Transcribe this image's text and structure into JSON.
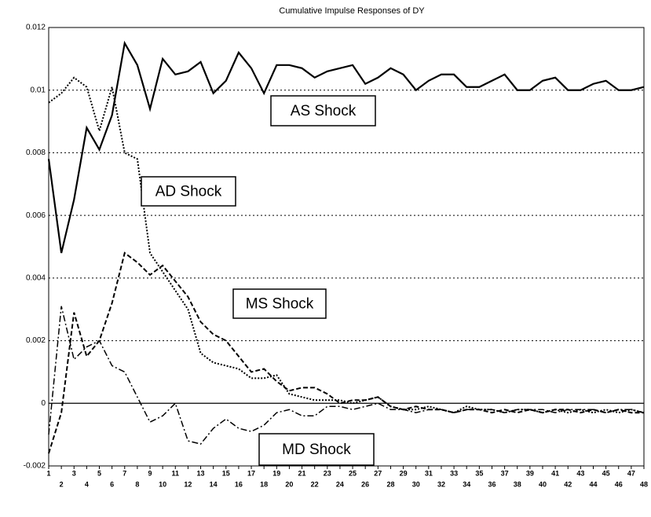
{
  "chart_data": {
    "type": "line",
    "title": "Cumulative Impulse Responses of DY",
    "x": [
      1,
      2,
      3,
      4,
      5,
      6,
      7,
      8,
      9,
      10,
      11,
      12,
      13,
      14,
      15,
      16,
      17,
      18,
      19,
      20,
      21,
      22,
      23,
      24,
      25,
      26,
      27,
      28,
      29,
      30,
      31,
      32,
      33,
      34,
      35,
      36,
      37,
      38,
      39,
      40,
      41,
      42,
      43,
      44,
      45,
      46,
      47,
      48
    ],
    "xlim": [
      1,
      48
    ],
    "ylim": [
      -0.002,
      0.012
    ],
    "yticks": [
      -0.002,
      0,
      0.002,
      0.004,
      0.006,
      0.008,
      0.01,
      0.012
    ],
    "grid": true,
    "series": [
      {
        "name": "AS Shock",
        "color": "#000000",
        "values": [
          0.0078,
          0.0048,
          0.0065,
          0.0088,
          0.0081,
          0.0092,
          0.0115,
          0.0108,
          0.0094,
          0.011,
          0.0105,
          0.0106,
          0.0109,
          0.0099,
          0.0103,
          0.0112,
          0.0107,
          0.0099,
          0.0108,
          0.0108,
          0.0107,
          0.0104,
          0.0106,
          0.0107,
          0.0108,
          0.0102,
          0.0104,
          0.0107,
          0.0105,
          0.01,
          0.0103,
          0.0105,
          0.0105,
          0.0101,
          0.0101,
          0.0103,
          0.0105,
          0.01,
          0.01,
          0.0103,
          0.0104,
          0.01,
          0.01,
          0.0102,
          0.0103,
          0.01,
          0.01,
          0.0101
        ]
      },
      {
        "name": "AD Shock",
        "color": "#000000",
        "values": [
          0.0096,
          0.0099,
          0.0104,
          0.0101,
          0.0087,
          0.0101,
          0.008,
          0.0078,
          0.0048,
          0.0042,
          0.0036,
          0.003,
          0.0016,
          0.0013,
          0.0012,
          0.0011,
          0.0008,
          0.0008,
          0.0009,
          0.0003,
          0.0002,
          0.0001,
          0.0001,
          0.0001,
          0,
          0.0001,
          0.0002,
          -0.0001,
          -0.0002,
          -0.0002,
          -0.0001,
          -0.0002,
          -0.0003,
          -0.0001,
          -0.0002,
          -0.0002,
          -0.0003,
          -0.0002,
          -0.0002,
          -0.0003,
          -0.0002,
          -0.0003,
          -0.0002,
          -0.0003,
          -0.0002,
          -0.0003,
          -0.0002,
          -0.0003
        ]
      },
      {
        "name": "MS Shock",
        "color": "#000000",
        "values": [
          -0.0016,
          -0.0003,
          0.0029,
          0.0015,
          0.002,
          0.0032,
          0.0048,
          0.0045,
          0.0041,
          0.0044,
          0.0039,
          0.0034,
          0.0026,
          0.0022,
          0.002,
          0.0015,
          0.001,
          0.0011,
          0.0007,
          0.0004,
          0.0005,
          0.0005,
          0.0003,
          0,
          0.0001,
          0.0001,
          0.0002,
          -0.0001,
          -0.0002,
          -0.0001,
          -0.0002,
          -0.0002,
          -0.0003,
          -0.0002,
          -0.0002,
          -0.0003,
          -0.0002,
          -0.0003,
          -0.0002,
          -0.0003,
          -0.0002,
          -0.0002,
          -0.0003,
          -0.0002,
          -0.0003,
          -0.0002,
          -0.0003,
          -0.0003
        ]
      },
      {
        "name": "MD Shock",
        "color": "#000000",
        "values": [
          -0.001,
          0.0031,
          0.0014,
          0.0018,
          0.002,
          0.0012,
          0.001,
          0.0002,
          -0.0006,
          -0.0004,
          0,
          -0.0012,
          -0.0013,
          -0.0008,
          -0.0005,
          -0.0008,
          -0.0009,
          -0.0007,
          -0.0003,
          -0.0002,
          -0.0004,
          -0.0004,
          -0.0001,
          -0.0001,
          -0.0002,
          -0.0001,
          0,
          -0.0002,
          -0.0002,
          -0.0003,
          -0.0002,
          -0.0002,
          -0.0003,
          -0.0002,
          -0.0002,
          -0.0002,
          -0.0003,
          -0.0002,
          -0.0002,
          -0.0002,
          -0.0003,
          -0.0002,
          -0.0002,
          -0.0002,
          -0.0003,
          -0.0002,
          -0.0002,
          -0.0003
        ]
      }
    ]
  }
}
